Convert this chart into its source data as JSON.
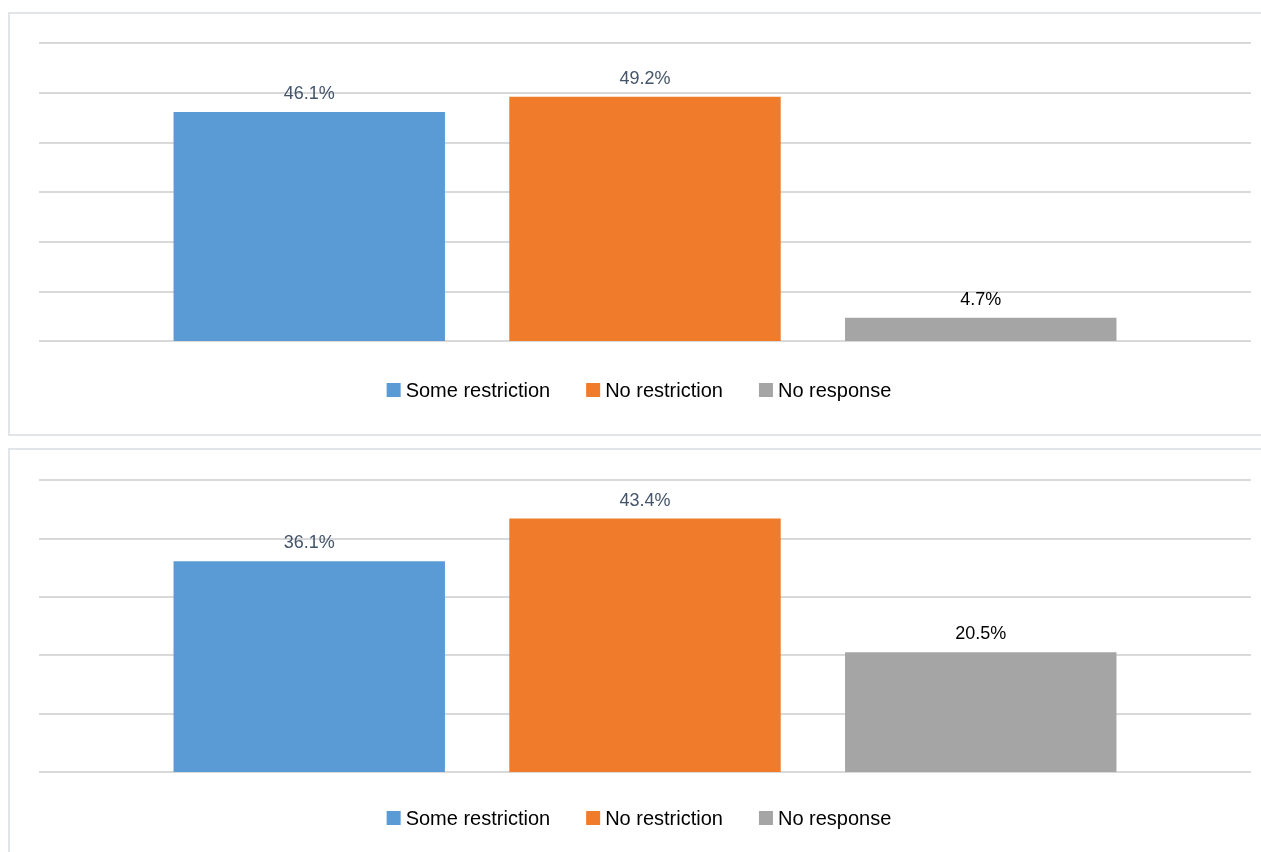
{
  "chart_data": [
    {
      "type": "bar",
      "categories": [
        null
      ],
      "series": [
        {
          "name": "Some restriction",
          "color": "#5b9bd5",
          "values": [
            46.1
          ],
          "value_labels": [
            "46.1%"
          ]
        },
        {
          "name": "No restriction",
          "color": "#f07b2a",
          "values": [
            49.2
          ],
          "value_labels": [
            "49.2%"
          ]
        },
        {
          "name": "No response",
          "color": "#a5a5a5",
          "values": [
            4.7
          ],
          "value_labels": [
            "4.7%"
          ]
        }
      ],
      "ylim": [
        0,
        60
      ],
      "yticks": [
        {
          "value": 0,
          "label": null
        },
        {
          "value": 10,
          "label": null
        },
        {
          "value": 20,
          "label": null
        },
        {
          "value": 30,
          "label": null
        },
        {
          "value": 40,
          "label": null
        },
        {
          "value": 50,
          "label": null
        },
        {
          "value": 60,
          "label": null
        }
      ],
      "grid": "y",
      "legend": "bottom"
    },
    {
      "type": "bar",
      "categories": [
        null
      ],
      "series": [
        {
          "name": "Some restriction",
          "color": "#5b9bd5",
          "values": [
            36.1
          ],
          "value_labels": [
            "36.1%"
          ]
        },
        {
          "name": "No restriction",
          "color": "#f07b2a",
          "values": [
            43.4
          ],
          "value_labels": [
            "43.4%"
          ]
        },
        {
          "name": "No response",
          "color": "#a5a5a5",
          "values": [
            20.5
          ],
          "value_labels": [
            "20.5%"
          ]
        }
      ],
      "ylim": [
        0,
        50
      ],
      "yticks": [
        {
          "value": 0,
          "label": null
        },
        {
          "value": 10,
          "label": null
        },
        {
          "value": 20,
          "label": null
        },
        {
          "value": 30,
          "label": null
        },
        {
          "value": 40,
          "label": null
        },
        {
          "value": 50,
          "label": null
        }
      ],
      "grid": "y",
      "legend": "bottom"
    }
  ]
}
